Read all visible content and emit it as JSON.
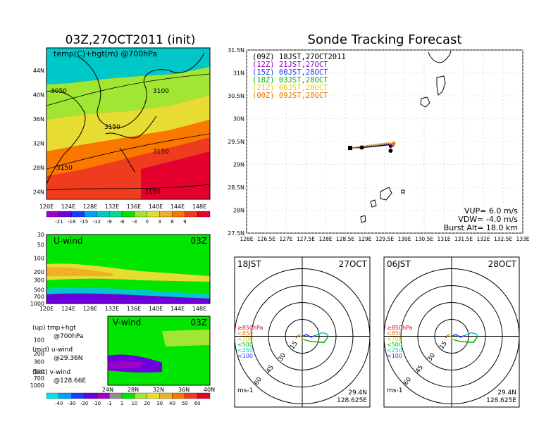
{
  "map_panel": {
    "title": "03Z,27OCT2011 (init)",
    "label": "temp(C)+hgt(m) @700hPa",
    "lat_ticks": [
      "44N",
      "40N",
      "36N",
      "32N",
      "28N",
      "24N"
    ],
    "lon_ticks": [
      "120E",
      "124E",
      "128E",
      "132E",
      "136E",
      "140E",
      "144E",
      "148E"
    ],
    "contour_labels": [
      "3050",
      "3100",
      "3150",
      "3150",
      "3150",
      "3150"
    ],
    "colorbar_ticks": [
      "-21",
      "-18",
      "-15",
      "-12",
      "-9",
      "-6",
      "-3",
      "0",
      "3",
      "6",
      "9"
    ],
    "colorbar_colors": [
      "#a000c8",
      "#6e00dc",
      "#1e3cff",
      "#00a0ff",
      "#00c8c8",
      "#00dc8c",
      "#00e600",
      "#a0e632",
      "#e6dc32",
      "#f0af28",
      "#fa7800",
      "#f03c1e",
      "#e6002d"
    ]
  },
  "u_panel": {
    "label": "U-wind",
    "time": "03Z",
    "y_ticks": [
      "30",
      "50",
      "100",
      "200",
      "300",
      "500",
      "700",
      "1000"
    ],
    "x_ticks": [
      "120E",
      "124E",
      "128E",
      "132E",
      "136E",
      "140E",
      "144E",
      "148E"
    ]
  },
  "v_panel": {
    "label": "V-wind",
    "time": "03Z",
    "y_ticks": [
      "30",
      "50",
      "100",
      "200",
      "300",
      "500",
      "700",
      "1000"
    ],
    "x_ticks": [
      "24N",
      "28N",
      "32N",
      "36N",
      "40N"
    ]
  },
  "legend_notes": {
    "up_1": "(up) tmp+hgt",
    "up_2": "@700hPa",
    "mid_1": "(mid) u-wind",
    "mid_2": "@29.36N",
    "bot_1": "(bot) v-wind",
    "bot_2": "@128.66E"
  },
  "wind_colorbar": {
    "ticks": [
      "-40",
      "-30",
      "-20",
      "-10",
      "-1",
      "1",
      "10",
      "20",
      "30",
      "40",
      "50",
      "60"
    ],
    "colors": [
      "#00e6e6",
      "#00a0ff",
      "#1e3cff",
      "#6e00dc",
      "#a000c8",
      "#909090",
      "#00e600",
      "#a0e632",
      "#e6dc32",
      "#f0af28",
      "#fa7800",
      "#f03c1e",
      "#e6002d"
    ]
  },
  "tracking": {
    "title": "Sonde Tracking Forecast",
    "lat_ticks": [
      "31.5N",
      "31N",
      "30.5N",
      "30N",
      "29.5N",
      "29N",
      "28.5N",
      "28N",
      "27.5N"
    ],
    "lon_ticks": [
      "126E",
      "126.5E",
      "127E",
      "127.5E",
      "128E",
      "128.5E",
      "129E",
      "129.5E",
      "130E",
      "130.5E",
      "131E",
      "131.5E",
      "132E",
      "132.5E",
      "133E"
    ],
    "legend": [
      {
        "text": "(09Z)  18JST,27OCT2011",
        "color": "#000000"
      },
      {
        "text": "(12Z)  21JST,27OCT",
        "color": "#a000c8"
      },
      {
        "text": "(15Z)  00JST,28OCT",
        "color": "#1e3cff"
      },
      {
        "text": "(18Z)  03JST,28OCT",
        "color": "#00b400"
      },
      {
        "text": "(21Z)  06JST,28OCT",
        "color": "#e6c800"
      },
      {
        "text": "(00Z)  09JST,28OCT",
        "color": "#f07800"
      }
    ],
    "vup": "VUP= 6.0 m/s",
    "vdw": "VDW= -4.0 m/s",
    "burst": "Burst Alt= 18.0 km"
  },
  "polar_left": {
    "time": "18JST",
    "date": "27OCT",
    "rings": [
      "15",
      "30",
      "45",
      "60"
    ],
    "levels": [
      "≥850hPa",
      "<850",
      "<700",
      "<500",
      "<250",
      "<100"
    ],
    "level_colors": [
      "#e6002d",
      "#f07800",
      "#e6c800",
      "#00b400",
      "#00c8c8",
      "#1e3cff"
    ],
    "units": "ms-1",
    "lat": "29.4N",
    "lon": "128.625E"
  },
  "polar_right": {
    "time": "06JST",
    "date": "28OCT",
    "rings": [
      "15",
      "30",
      "45",
      "60"
    ],
    "levels": [
      "≥850hPa",
      "<850",
      "<700",
      "<500",
      "<250",
      "<100"
    ],
    "level_colors": [
      "#e6002d",
      "#f07800",
      "#e6c800",
      "#00b400",
      "#00c8c8",
      "#1e3cff"
    ],
    "units": "ms-1",
    "lat": "29.4N",
    "lon": "128.625E"
  },
  "chart_data": [
    {
      "type": "heatmap",
      "title": "03Z,27OCT2011 (init)",
      "variable": "temp(C)+hgt(m) @700hPa",
      "xlim": [
        120,
        150
      ],
      "ylim": [
        22,
        48
      ],
      "contour_values": [
        3050,
        3100,
        3150
      ]
    },
    {
      "type": "heatmap",
      "title": "U-wind 03Z",
      "x_range": [
        120,
        150
      ],
      "y_levels_hPa": [
        30,
        50,
        100,
        200,
        300,
        500,
        700,
        1000
      ],
      "colorbar": [
        -40,
        -30,
        -20,
        -10,
        -1,
        1,
        10,
        20,
        30,
        40,
        50,
        60
      ]
    },
    {
      "type": "heatmap",
      "title": "V-wind 03Z",
      "x_range": [
        24,
        40
      ],
      "y_levels_hPa": [
        30,
        50,
        100,
        200,
        300,
        500,
        700,
        1000
      ],
      "colorbar": [
        -40,
        -30,
        -20,
        -10,
        -1,
        1,
        10,
        20,
        30,
        40,
        50,
        60
      ]
    },
    {
      "type": "line",
      "title": "Sonde Tracking Forecast",
      "xlim": [
        126,
        133
      ],
      "ylim": [
        27.5,
        31.5
      ],
      "launch": {
        "lon": 128.625,
        "lat": 29.36
      },
      "series": [
        {
          "name": "(09Z) 18JST,27OCT2011",
          "x": [
            128.62,
            128.95,
            129.3,
            129.6,
            129.65
          ],
          "y": [
            29.36,
            29.37,
            29.4,
            29.43,
            29.4
          ]
        },
        {
          "name": "(12Z) 21JST,27OCT",
          "x": [
            128.62,
            128.95,
            129.3,
            129.6,
            129.7
          ],
          "y": [
            29.36,
            29.38,
            29.42,
            29.45,
            29.42
          ]
        },
        {
          "name": "(15Z) 00JST,28OCT",
          "x": [
            128.62,
            128.95,
            129.3,
            129.6,
            129.72
          ],
          "y": [
            29.36,
            29.39,
            29.43,
            29.46,
            29.44
          ]
        },
        {
          "name": "(18Z) 03JST,28OCT",
          "x": [
            128.62,
            128.95,
            129.3,
            129.6,
            129.72
          ],
          "y": [
            29.36,
            29.39,
            29.43,
            29.46,
            29.45
          ]
        },
        {
          "name": "(21Z) 06JST,28OCT",
          "x": [
            128.62,
            128.95,
            129.3,
            129.6,
            129.73
          ],
          "y": [
            29.36,
            29.4,
            29.44,
            29.47,
            29.45
          ]
        },
        {
          "name": "(00Z) 09JST,28OCT",
          "x": [
            128.62,
            128.95,
            129.3,
            129.6,
            129.73
          ],
          "y": [
            29.36,
            29.4,
            29.44,
            29.47,
            29.46
          ]
        }
      ],
      "landing_points": [
        {
          "lon": 128.92,
          "lat": 29.37
        },
        {
          "lon": 129.65,
          "lat": 29.3
        }
      ],
      "vup_m_s": 6.0,
      "vdw_m_s": -4.0,
      "burst_alt_km": 18.0
    }
  ]
}
